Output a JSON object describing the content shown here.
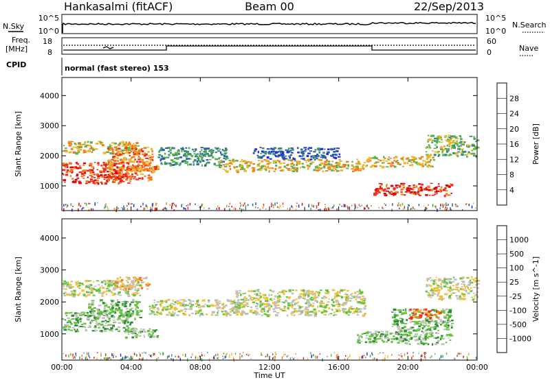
{
  "header": {
    "station": "Hankasalmi (fitACF)",
    "beam": "Beam 00",
    "date": "22/Sep/2013"
  },
  "strips": {
    "nsky_label": "N.Sky",
    "nsearch_label": "N.Search",
    "freq_label_1": "Freq.",
    "freq_label_2": "[MHz]",
    "nave_label": "Nave",
    "cpid_label": "CPID",
    "cpid_value": "normal (fast stereo) 153",
    "noise_ticks": [
      "10^5",
      "10^0"
    ],
    "freq_ticks": [
      "18",
      "8"
    ],
    "nave_ticks": [
      "60",
      "0"
    ]
  },
  "colors": {
    "background": "#ffffff",
    "axis": "#000000",
    "ground_scatter": "#bdbdb8"
  },
  "chart_data": [
    {
      "type": "heatmap",
      "name": "power",
      "xlabel": "Time UT",
      "ylabel": "Slant Range [km]",
      "x_ticks": [
        "00:00",
        "04:00",
        "08:00",
        "12:00",
        "16:00",
        "20:00",
        "00:00"
      ],
      "x_tick_hours": [
        0,
        4,
        8,
        12,
        16,
        20,
        24
      ],
      "y_ticks": [
        1000,
        2000,
        3000,
        4000
      ],
      "xlim": [
        0,
        24
      ],
      "ylim": [
        180,
        4600
      ],
      "colorbar": {
        "title": "Power [dB]",
        "levels": [
          "4",
          "8",
          "12",
          "16",
          "20",
          "24",
          "28"
        ],
        "colors": [
          "#1d2fe0",
          "#2c5fa6",
          "#3c8c72",
          "#59b34a",
          "#ecb52c",
          "#f47a1a",
          "#ee2e1a",
          "#d9060c"
        ]
      },
      "bands": [
        {
          "t0": 0.0,
          "t1": 4.0,
          "r0": 1100,
          "r1": 1800,
          "level": 6
        },
        {
          "t0": 0.0,
          "t1": 4.5,
          "r0": 2100,
          "r1": 2500,
          "level": 4
        },
        {
          "t0": 2.6,
          "t1": 5.2,
          "r0": 1200,
          "r1": 2300,
          "level": 5
        },
        {
          "t0": 4.0,
          "t1": 5.5,
          "r0": 1500,
          "r1": 1700,
          "level": 5
        },
        {
          "t0": 5.5,
          "t1": 9.5,
          "r0": 1700,
          "r1": 2300,
          "level": 2
        },
        {
          "t0": 9.0,
          "t1": 17.5,
          "r0": 1500,
          "r1": 1900,
          "level": 4
        },
        {
          "t0": 11.0,
          "t1": 16.0,
          "r0": 1900,
          "r1": 2300,
          "level": 1
        },
        {
          "t0": 17.5,
          "t1": 21.5,
          "r0": 1650,
          "r1": 2000,
          "level": 4
        },
        {
          "t0": 18.0,
          "t1": 22.5,
          "r0": 700,
          "r1": 1100,
          "level": 6
        },
        {
          "t0": 21.0,
          "t1": 24.0,
          "r0": 2000,
          "r1": 2700,
          "level": 3
        }
      ]
    },
    {
      "type": "heatmap",
      "name": "velocity",
      "xlabel": "Time UT",
      "ylabel": "Slant Range [km]",
      "x_ticks": [
        "00:00",
        "04:00",
        "08:00",
        "12:00",
        "16:00",
        "20:00",
        "00:00"
      ],
      "x_tick_hours": [
        0,
        4,
        8,
        12,
        16,
        20,
        24
      ],
      "y_ticks": [
        1000,
        2000,
        3000,
        4000
      ],
      "xlim": [
        0,
        24
      ],
      "ylim": [
        180,
        4600
      ],
      "colorbar": {
        "title": "Velocity [m s^-1]",
        "levels": [
          "1000",
          "500",
          "100",
          "25",
          "-25",
          "-100",
          "-500",
          "-1000"
        ],
        "colors": [
          "#2a42c0",
          "#3da4a0",
          "#2f8b3a",
          "#63c43a",
          "#c0c0bc",
          "#f4c03a",
          "#f47a1a",
          "#ee2e1a",
          "#e00a0a"
        ]
      },
      "bands": [
        {
          "t0": 0.0,
          "t1": 4.5,
          "r0": 2200,
          "r1": 2700,
          "level": 4
        },
        {
          "t0": 0.0,
          "t1": 4.0,
          "r0": 1100,
          "r1": 1700,
          "level": 3
        },
        {
          "t0": 1.5,
          "t1": 4.5,
          "r0": 1500,
          "r1": 2100,
          "level": 3
        },
        {
          "t0": 3.0,
          "t1": 5.0,
          "r0": 2400,
          "r1": 2800,
          "level": 5
        },
        {
          "t0": 3.5,
          "t1": 5.5,
          "r0": 900,
          "r1": 1200,
          "level": 3
        },
        {
          "t0": 5.0,
          "t1": 10.5,
          "r0": 1600,
          "r1": 2100,
          "level": 4
        },
        {
          "t0": 10.0,
          "t1": 17.5,
          "r0": 1600,
          "r1": 2400,
          "level": 4
        },
        {
          "t0": 17.0,
          "t1": 22.5,
          "r0": 700,
          "r1": 1100,
          "level": 3
        },
        {
          "t0": 19.0,
          "t1": 22.5,
          "r0": 1100,
          "r1": 1800,
          "level": 3
        },
        {
          "t0": 20.0,
          "t1": 22.0,
          "r0": 1500,
          "r1": 1800,
          "level": 6
        },
        {
          "t0": 21.0,
          "t1": 24.0,
          "r0": 2100,
          "r1": 2800,
          "level": 4
        }
      ]
    }
  ]
}
